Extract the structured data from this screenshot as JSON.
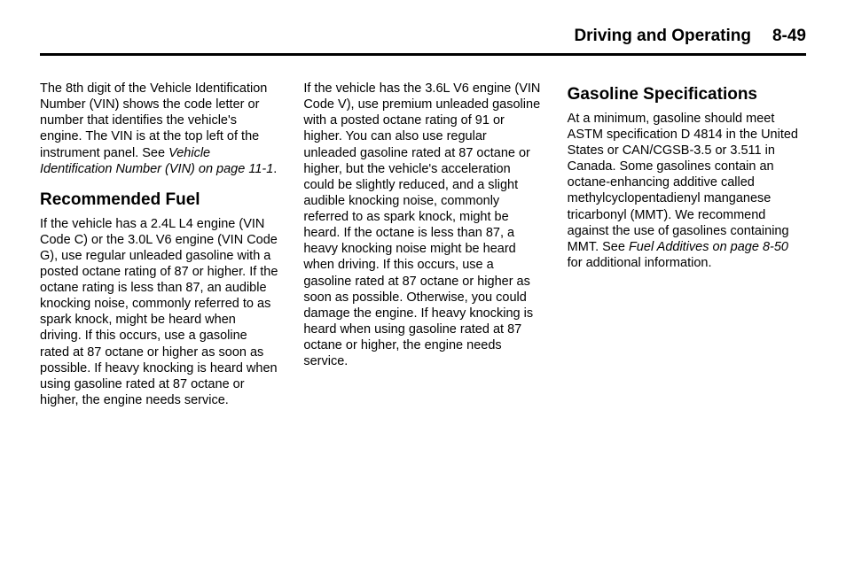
{
  "header": {
    "title": "Driving and Operating",
    "page": "8-49"
  },
  "col1": {
    "intro_a": "The 8th digit of the Vehicle Identification Number (VIN) shows the code letter or number that identifies the vehicle's engine. The VIN is at the top left of the instrument panel. See ",
    "intro_ref": "Vehicle Identification Number (VIN) on page 11-1",
    "intro_b": ".",
    "h_recommended": "Recommended Fuel",
    "rec_body": "If the vehicle has a 2.4L L4 engine (VIN Code C) or the 3.0L V6 engine (VIN Code G), use regular unleaded gasoline with a posted octane rating of 87 or higher. If the octane rating is less than 87, an audible knocking noise, commonly referred to as spark knock, might be heard when driving. If this occurs, use a gasoline rated at 87 octane or higher as soon as possible. If heavy knocking is heard when using gasoline rated at 87 octane or higher, the engine needs service."
  },
  "col2": {
    "body": "If the vehicle has the 3.6L V6 engine (VIN Code V), use premium unleaded gasoline with a posted octane rating of 91 or higher. You can also use regular unleaded gasoline rated at 87 octane or higher, but the vehicle's acceleration could be slightly reduced, and a slight audible knocking noise, commonly referred to as spark knock, might be heard. If the octane is less than 87, a heavy knocking noise might be heard when driving. If this occurs, use a gasoline rated at 87 octane or higher as soon as possible. Otherwise, you could damage the engine. If heavy knocking is heard when using gasoline rated at 87 octane or higher, the engine needs service."
  },
  "col3": {
    "h_gas": "Gasoline Specifications",
    "gas_a": "At a minimum, gasoline should meet ASTM specification D 4814 in the United States or CAN/CGSB-3.5 or 3.511 in Canada. Some gasolines contain an octane-enhancing additive called methylcyclopentadienyl manganese tricarbonyl (MMT). We recommend against the use of gasolines containing MMT. See ",
    "gas_ref": "Fuel Additives on page 8-50",
    "gas_b": " for additional information."
  }
}
